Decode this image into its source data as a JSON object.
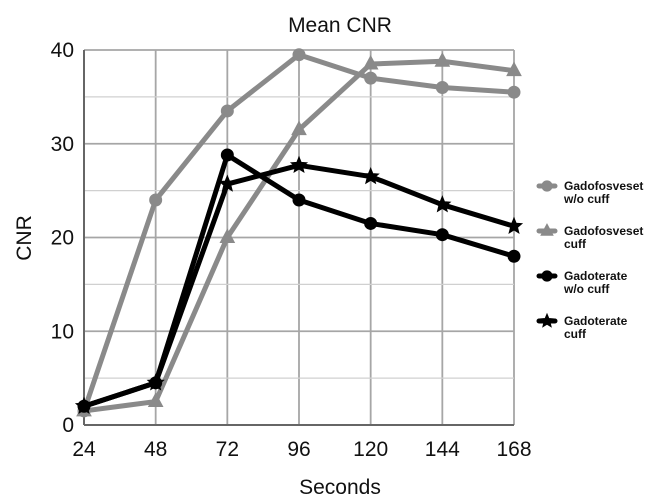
{
  "chart_data": {
    "type": "line",
    "title": "Mean CNR",
    "xlabel": "Seconds",
    "ylabel": "CNR",
    "x": [
      24,
      48,
      72,
      96,
      120,
      144,
      168
    ],
    "xticks": [
      "24",
      "48",
      "72",
      "96",
      "120",
      "144",
      "168"
    ],
    "ylim": [
      0,
      40
    ],
    "yticks": [
      "0",
      "10",
      "20",
      "30",
      "40"
    ],
    "grid": true,
    "legend_position": "right",
    "series": [
      {
        "name": "Gadofosveset w/o cuff",
        "legend_lines": [
          "Gadofosveset",
          "w/o cuff"
        ],
        "marker": "circle",
        "color": "#8a8a8a",
        "values": [
          1.5,
          24,
          33.5,
          39.5,
          37,
          36,
          35.5
        ]
      },
      {
        "name": "Gadofosveset cuff",
        "legend_lines": [
          "Gadofosveset",
          "cuff"
        ],
        "marker": "triangle",
        "color": "#8a8a8a",
        "values": [
          1.5,
          2.5,
          20,
          31.5,
          38.5,
          38.8,
          37.8
        ]
      },
      {
        "name": "Gadoterate w/o cuff",
        "legend_lines": [
          "Gadoterate",
          "w/o cuff"
        ],
        "marker": "circle",
        "color": "#000000",
        "values": [
          2,
          4.5,
          28.8,
          24,
          21.5,
          20.3,
          18
        ]
      },
      {
        "name": "Gadoterate cuff",
        "legend_lines": [
          "Gadoterate",
          "cuff"
        ],
        "marker": "star",
        "color": "#000000",
        "values": [
          2,
          4.5,
          25.7,
          27.7,
          26.5,
          23.5,
          21.2
        ]
      }
    ]
  }
}
